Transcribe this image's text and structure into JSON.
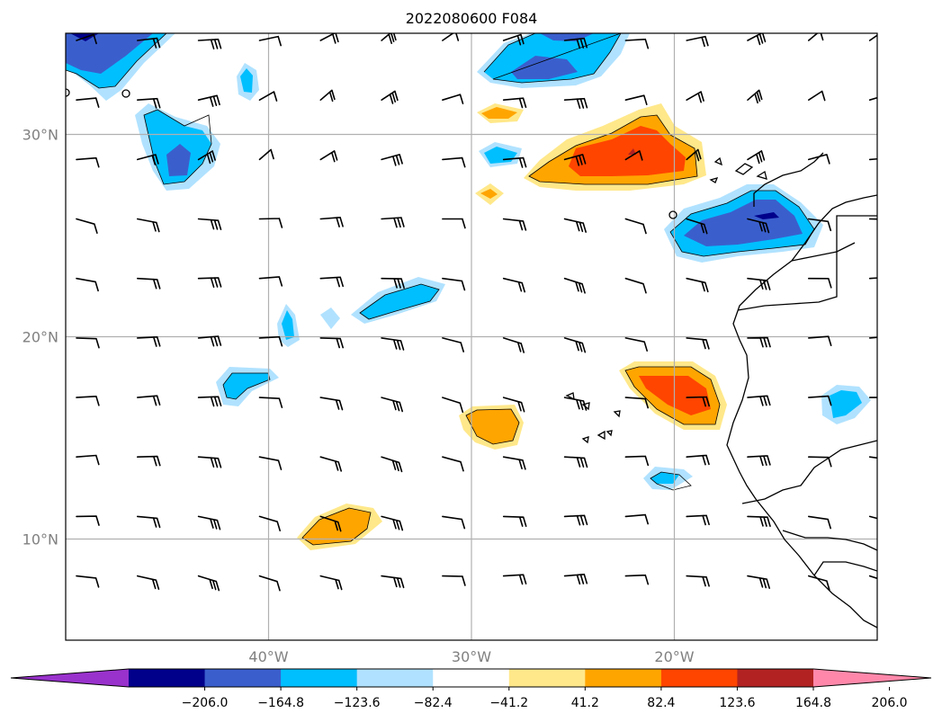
{
  "title": "2022080600 F084",
  "map": {
    "lon_range": [
      -50,
      -10
    ],
    "lat_range": [
      5,
      35
    ],
    "lon_ticks": [
      {
        "value": -40,
        "label": "40°W"
      },
      {
        "value": -30,
        "label": "30°W"
      },
      {
        "value": -20,
        "label": "20°W"
      }
    ],
    "lat_ticks": [
      {
        "value": 30,
        "label": "30°N"
      },
      {
        "value": 20,
        "label": "20°N"
      },
      {
        "value": 10,
        "label": "10°N"
      }
    ],
    "gridlines": true,
    "coastlines": true,
    "wind_barbs": true
  },
  "colorbar": {
    "extend": "both",
    "levels": [
      -206.0,
      -164.8,
      -123.6,
      -82.4,
      -41.2,
      41.2,
      82.4,
      123.6,
      164.8,
      206.0
    ],
    "tick_labels": [
      "−206.0",
      "−164.8",
      "−123.6",
      "−82.4",
      "−41.2",
      "41.2",
      "82.4",
      "123.6",
      "164.8",
      "206.0"
    ],
    "colors": [
      "#9932cc",
      "#00008b",
      "#3a5fcd",
      "#00bfff",
      "#b0e2ff",
      "#ffffff",
      "#ffe88a",
      "#ffa500",
      "#ff4500",
      "#b22222",
      "#ff88aa"
    ]
  }
}
